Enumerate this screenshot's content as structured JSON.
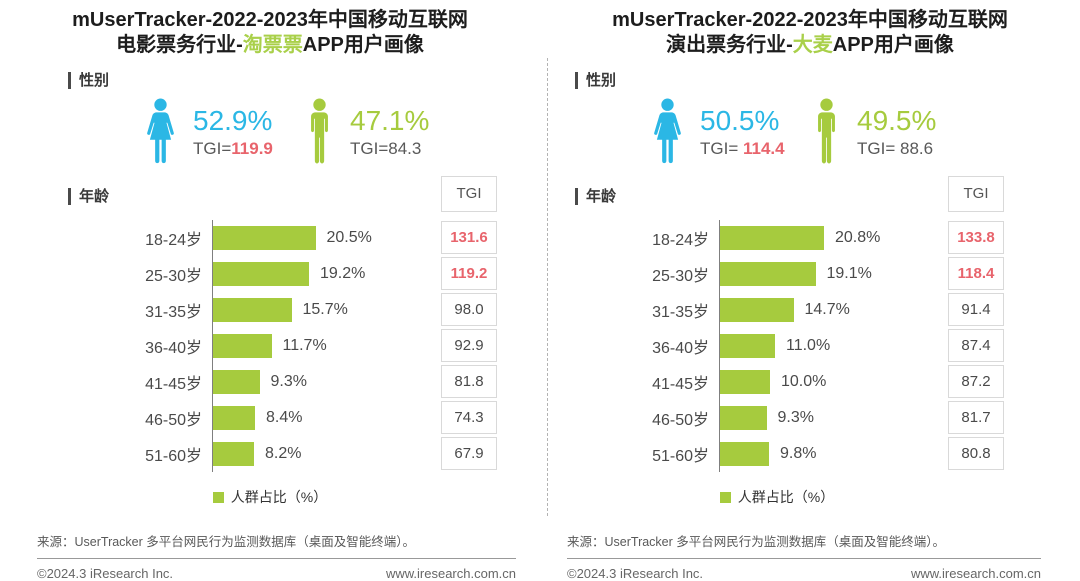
{
  "colors": {
    "accent_green": "#a6cb3e",
    "accent_cyan": "#2bb7e5",
    "accent_red": "#e8646c",
    "title_highlight": "#a9d04a",
    "cell_border": "#d9d9d9"
  },
  "panels": [
    {
      "title_line1": "mUserTracker-2022-2023年中国移动互联网",
      "title_line2_pre": "电影票务行业-",
      "title_line2_highlight": "淘票票",
      "title_line2_post": "APP用户画像",
      "gender": {
        "label": "性别",
        "female": {
          "percent": "52.9%",
          "tgi_prefix": "TGI=",
          "tgi_value": "119.9"
        },
        "male": {
          "percent": "47.1%",
          "tgi_prefix": "TGI=",
          "tgi_value": "84.3"
        }
      },
      "age": {
        "label": "年龄",
        "tgi_header": "TGI",
        "rows": [
          {
            "age": "18-24岁",
            "percent": 20.5,
            "percent_label": "20.5%",
            "tgi": "131.6",
            "tgi_high": true
          },
          {
            "age": "25-30岁",
            "percent": 19.2,
            "percent_label": "19.2%",
            "tgi": "119.2",
            "tgi_high": true
          },
          {
            "age": "31-35岁",
            "percent": 15.7,
            "percent_label": "15.7%",
            "tgi": "98.0",
            "tgi_high": false
          },
          {
            "age": "36-40岁",
            "percent": 11.7,
            "percent_label": "11.7%",
            "tgi": "92.9",
            "tgi_high": false
          },
          {
            "age": "41-45岁",
            "percent": 9.3,
            "percent_label": "9.3%",
            "tgi": "81.8",
            "tgi_high": false
          },
          {
            "age": "46-50岁",
            "percent": 8.4,
            "percent_label": "8.4%",
            "tgi": "74.3",
            "tgi_high": false
          },
          {
            "age": "51-60岁",
            "percent": 8.2,
            "percent_label": "8.2%",
            "tgi": "67.9",
            "tgi_high": false
          }
        ]
      },
      "legend": "人群占比（%）",
      "source": "来源：UserTracker 多平台网民行为监测数据库（桌面及智能终端）。",
      "footer_left": "©2024.3 iResearch Inc.",
      "footer_right": "www.iresearch.com.cn"
    },
    {
      "title_line1": "mUserTracker-2022-2023年中国移动互联网",
      "title_line2_pre": "演出票务行业-",
      "title_line2_highlight": "大麦",
      "title_line2_post": "APP用户画像",
      "gender": {
        "label": "性别",
        "female": {
          "percent": "50.5%",
          "tgi_prefix": "TGI= ",
          "tgi_value": "114.4"
        },
        "male": {
          "percent": "49.5%",
          "tgi_prefix": "TGI= ",
          "tgi_value": "88.6"
        }
      },
      "age": {
        "label": "年龄",
        "tgi_header": "TGI",
        "rows": [
          {
            "age": "18-24岁",
            "percent": 20.8,
            "percent_label": "20.8%",
            "tgi": "133.8",
            "tgi_high": true
          },
          {
            "age": "25-30岁",
            "percent": 19.1,
            "percent_label": "19.1%",
            "tgi": "118.4",
            "tgi_high": true
          },
          {
            "age": "31-35岁",
            "percent": 14.7,
            "percent_label": "14.7%",
            "tgi": "91.4",
            "tgi_high": false
          },
          {
            "age": "36-40岁",
            "percent": 11.0,
            "percent_label": "11.0%",
            "tgi": "87.4",
            "tgi_high": false
          },
          {
            "age": "41-45岁",
            "percent": 10.0,
            "percent_label": "10.0%",
            "tgi": "87.2",
            "tgi_high": false
          },
          {
            "age": "46-50岁",
            "percent": 9.3,
            "percent_label": "9.3%",
            "tgi": "81.7",
            "tgi_high": false
          },
          {
            "age": "51-60岁",
            "percent": 9.8,
            "percent_label": "9.8%",
            "tgi": "80.8",
            "tgi_high": false
          }
        ]
      },
      "legend": "人群占比（%）",
      "source": "来源：UserTracker 多平台网民行为监测数据库（桌面及智能终端）。",
      "footer_left": "©2024.3 iResearch Inc.",
      "footer_right": "www.iresearch.com.cn"
    }
  ],
  "chart_data": [
    {
      "type": "bar",
      "orientation": "horizontal",
      "title": "mUserTracker-2022-2023年中国移动互联网电影票务行业-淘票票APP用户画像",
      "gender": {
        "female_percent": 52.9,
        "female_tgi": 119.9,
        "male_percent": 47.1,
        "male_tgi": 84.3
      },
      "categories": [
        "18-24岁",
        "25-30岁",
        "31-35岁",
        "36-40岁",
        "41-45岁",
        "46-50岁",
        "51-60岁"
      ],
      "series": [
        {
          "name": "人群占比（%）",
          "values": [
            20.5,
            19.2,
            15.7,
            11.7,
            9.3,
            8.4,
            8.2
          ]
        },
        {
          "name": "TGI",
          "values": [
            131.6,
            119.2,
            98.0,
            92.9,
            81.8,
            74.3,
            67.9
          ]
        }
      ],
      "xlabel": "人群占比（%）",
      "ylabel": "年龄",
      "legend_position": "bottom",
      "grid": false
    },
    {
      "type": "bar",
      "orientation": "horizontal",
      "title": "mUserTracker-2022-2023年中国移动互联网演出票务行业-大麦APP用户画像",
      "gender": {
        "female_percent": 50.5,
        "female_tgi": 114.4,
        "male_percent": 49.5,
        "male_tgi": 88.6
      },
      "categories": [
        "18-24岁",
        "25-30岁",
        "31-35岁",
        "36-40岁",
        "41-45岁",
        "46-50岁",
        "51-60岁"
      ],
      "series": [
        {
          "name": "人群占比（%）",
          "values": [
            20.8,
            19.1,
            14.7,
            11.0,
            10.0,
            9.3,
            9.8
          ]
        },
        {
          "name": "TGI",
          "values": [
            133.8,
            118.4,
            91.4,
            87.4,
            87.2,
            81.7,
            80.8
          ]
        }
      ],
      "xlabel": "人群占比（%）",
      "ylabel": "年龄",
      "legend_position": "bottom",
      "grid": false
    }
  ]
}
